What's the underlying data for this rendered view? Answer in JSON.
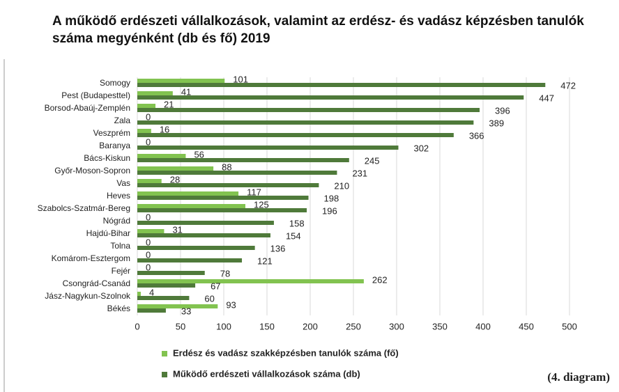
{
  "chart_data": {
    "type": "bar",
    "orientation": "horizontal",
    "title": "A működő erdészeti vállalkozások, valamint az erdész- és vadász képzésben tanulók száma megyénként (db és fő) 2019",
    "categories": [
      "Somogy",
      "Pest  (Budapesttel)",
      "Borsod-Abaúj-Zemplén",
      "Zala",
      "Veszprém",
      "Baranya",
      "Bács-Kiskun",
      "Győr-Moson-Sopron",
      "Vas",
      "Heves",
      "Szabolcs-Szatmár-Bereg",
      "Nógrád",
      "Hajdú-Bihar",
      "Tolna",
      "Komárom-Esztergom",
      "Fejér",
      "Csongrád-Csanád",
      "Jász-Nagykun-Szolnok",
      "Békés"
    ],
    "series": [
      {
        "name": "Erdész és vadász szakképzésben tanulók száma (fő)",
        "color": "#82c350",
        "values": [
          101,
          41,
          21,
          0,
          16,
          0,
          56,
          88,
          28,
          117,
          125,
          0,
          31,
          0,
          0,
          0,
          262,
          4,
          93
        ]
      },
      {
        "name": "Működő erdészeti vállalkozások száma (db)",
        "color": "#4f7a3a",
        "values": [
          472,
          447,
          396,
          389,
          366,
          302,
          245,
          231,
          210,
          198,
          196,
          158,
          154,
          136,
          121,
          78,
          67,
          60,
          33
        ]
      }
    ],
    "xlim": [
      0,
      500
    ],
    "xticks": [
      0,
      50,
      100,
      150,
      200,
      250,
      300,
      350,
      400,
      450,
      500
    ],
    "grid": true,
    "annotation": "(4. diagram)"
  }
}
